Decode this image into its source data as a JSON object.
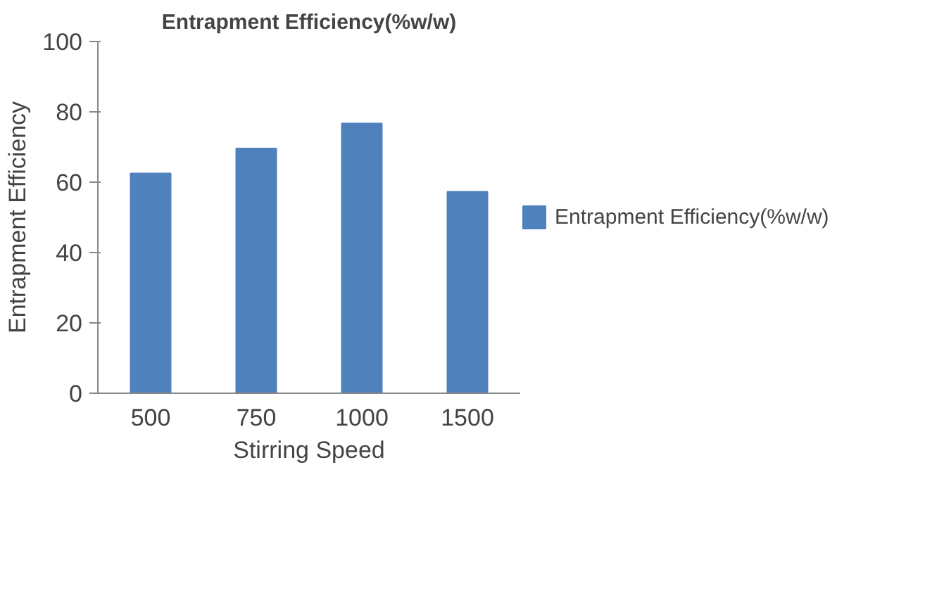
{
  "chart_data": {
    "type": "bar",
    "title": "Entrapment Efficiency(%w/w)",
    "xlabel": "Stirring Speed",
    "ylabel": "Entrapment Efficiency",
    "categories": [
      "500",
      "750",
      "1000",
      "1500"
    ],
    "series": [
      {
        "name": "Entrapment Efficiency(%w/w)",
        "color": "#4f81bd",
        "values": [
          62.5,
          69.6,
          76.7,
          57.3
        ]
      }
    ],
    "ylim": [
      0,
      100
    ],
    "yticks": [
      0,
      20,
      40,
      60,
      80,
      100
    ],
    "legend": "right"
  }
}
